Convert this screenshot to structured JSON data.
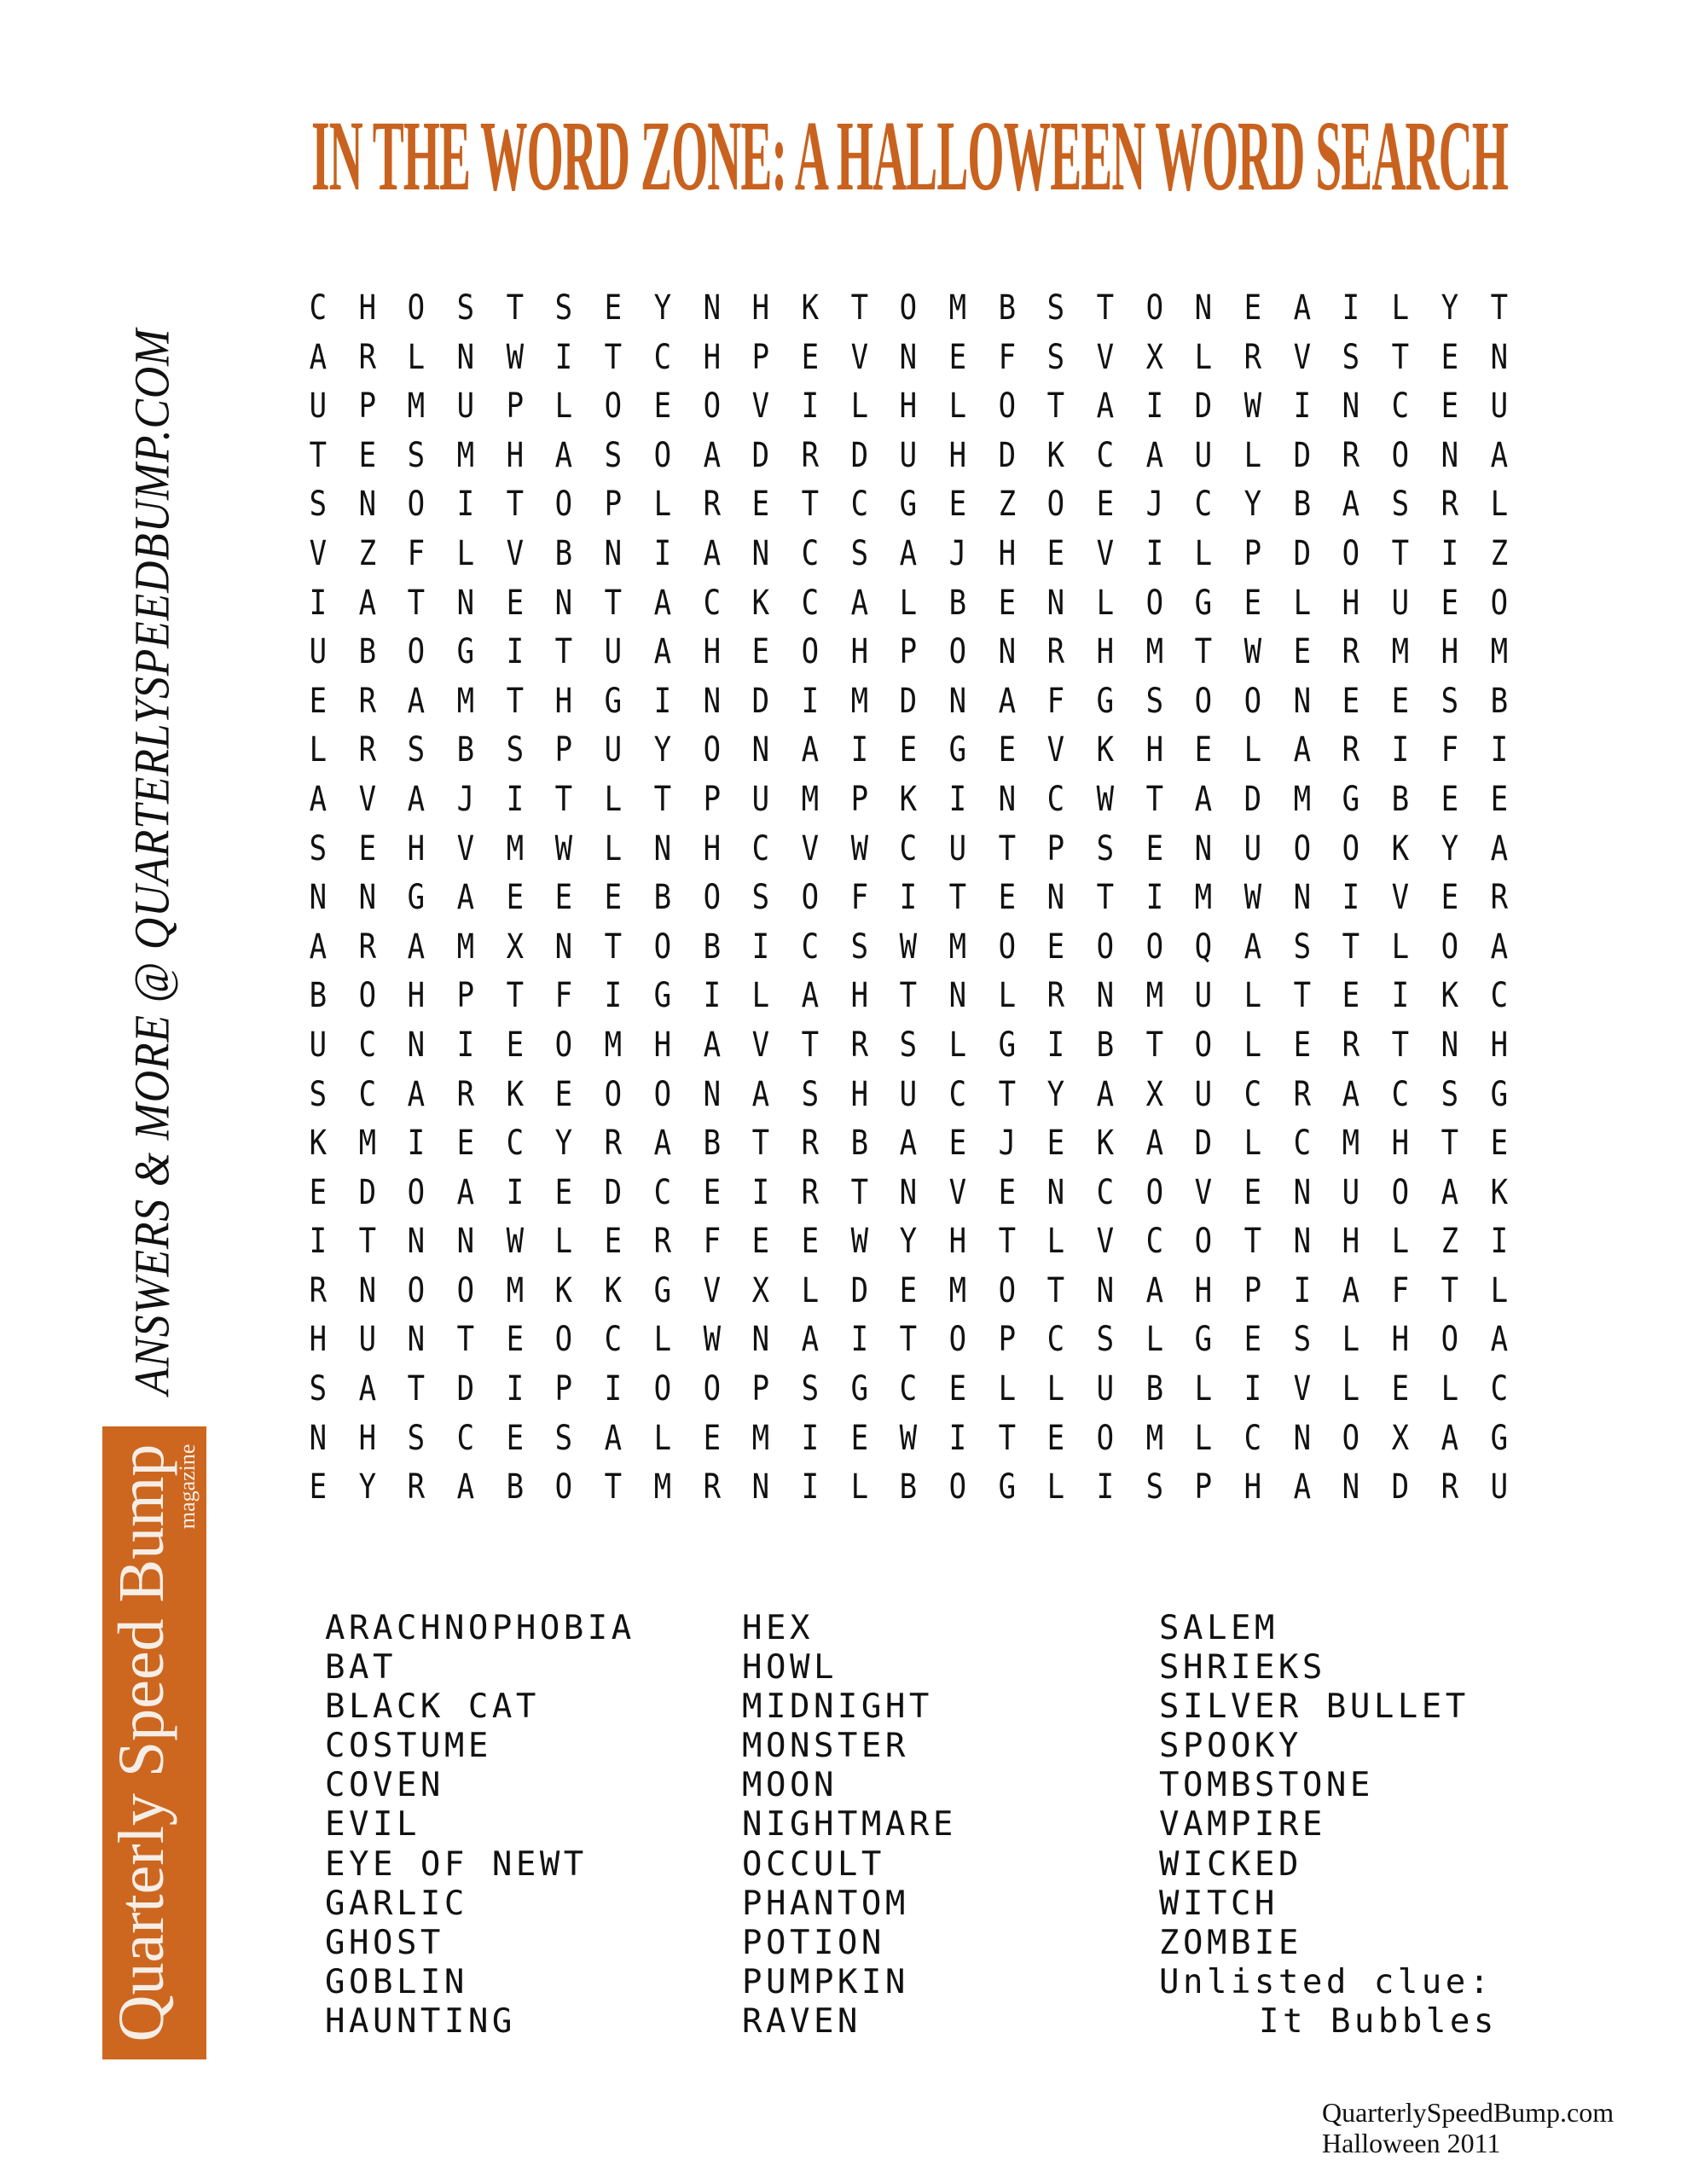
{
  "title": "IN THE WORD ZONE: A HALLOWEEN WORD SEARCH",
  "colors": {
    "accent": "#c8621e",
    "logo_bg": "#cd6720"
  },
  "side_text": "ANSWERS & MORE @ QUARTERLYSPEEDBUMP.COM",
  "logo": {
    "name": "Quarterly Speed Bump",
    "sub": "magazine"
  },
  "grid": [
    "CHOSTSEYNHKTOMBSTONEAILYT",
    "ARLNWITCHPEVNEFSVXLRVSTEN",
    "UPMUPLOEOVILHLOTAIDWINCEU",
    "TESMHASOADRDUHDKCAULDRONA",
    "SNOITOPLRETCGEZOEJCYBASRL",
    "VZFLVBNIANCSAJHEVILPDOTIZ",
    "IATNENTACKCALBENLOGELHUEO",
    "UBOGITUAHEOHPONRHMTWERMHM",
    "ERAMTHGINDIMDNAFGSOONEESB",
    "LRSBSPUYONAIEGEVKHELARIFI",
    "AVAJITLTPUMPKINCWTADMGBEE",
    "SEHVMWLNHCVWCUTPSENUOOKYA",
    "NNGAEEEBOSOFITENTIMWNIVER",
    "ARAMXNTOBICSWMOEOOQASTLOA",
    "BOHPTFIGILAHTNLRNMULTEIKC",
    "UCNIEOMHAVTRSLGIBTOLERTNH",
    "SCARKEOONASHUCTYAXUCRACSG",
    "KMIECYRABTRBAEJEKADLCMHTE",
    "EDOAIEDCEIRTNVENCOVENUOAK",
    "ITNNWLERFEEWYHTLVCOTNHLZI",
    "RNOOMKKGVXLDEMOTNAHPIAFTL",
    "HUNTEOCLWNAITOPCSLGESLHOA",
    "SATDIPIOOPSGCELLUBLIVLELC",
    "NHSCESALEMIEWITEOMLCNOXAG",
    "EYRABOTMRNILBOGLISPHANDRU"
  ],
  "word_list": {
    "col1": [
      "ARACHNOPHOBIA",
      "BAT",
      "BLACK CAT",
      "COSTUME",
      "COVEN",
      "EVIL",
      "EYE OF NEWT",
      "GARLIC",
      "GHOST",
      "GOBLIN",
      "HAUNTING"
    ],
    "col2": [
      "HEX",
      "HOWL",
      "MIDNIGHT",
      "MONSTER",
      "MOON",
      "NIGHTMARE",
      "OCCULT",
      "PHANTOM",
      "POTION",
      "PUMPKIN",
      "RAVEN"
    ],
    "col3": [
      "SALEM",
      "SHRIEKS",
      "SILVER BULLET",
      "SPOOKY",
      "TOMBSTONE",
      "VAMPIRE",
      "WICKED",
      "WITCH",
      "ZOMBIE"
    ],
    "unlisted_label": "Unlisted clue:",
    "unlisted_clue": "It Bubbles"
  },
  "footer": {
    "site": "QuarterlySpeedBump.com",
    "issue": "Halloween 2011"
  }
}
